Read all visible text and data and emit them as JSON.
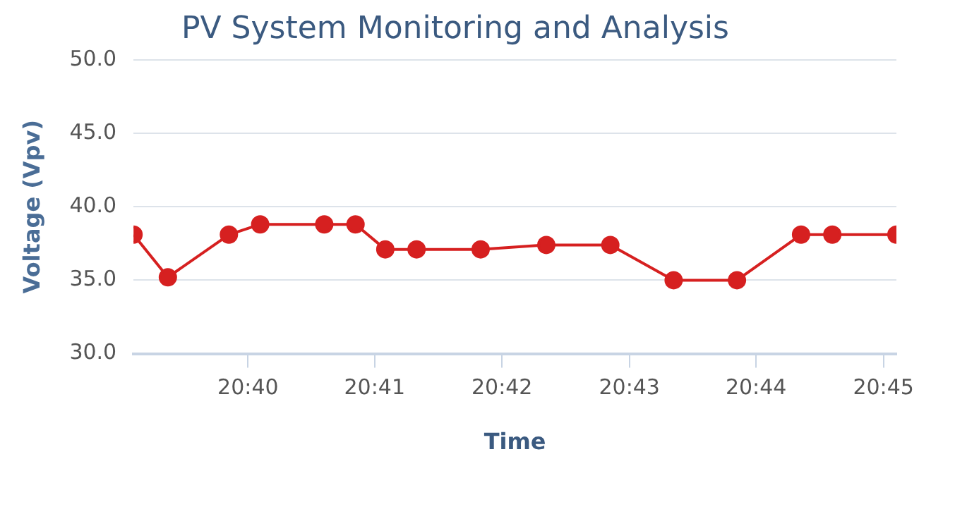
{
  "chart_data": {
    "type": "line",
    "title": "PV System Monitoring and Analysis",
    "xlabel": "Time",
    "ylabel": "Voltage (Vpv)",
    "x": [
      20.6517,
      20.6562,
      20.6642,
      20.6683,
      20.6767,
      20.6808,
      20.6847,
      20.6888,
      20.6972,
      20.7058,
      20.7142,
      20.7225,
      20.7308,
      20.7392,
      20.7433,
      20.7517
    ],
    "series": [
      {
        "color": "#d62020",
        "values": [
          38.1,
          35.2,
          38.1,
          38.8,
          38.8,
          38.8,
          37.1,
          37.1,
          37.1,
          37.4,
          37.4,
          35.0,
          35.0,
          38.1,
          38.1,
          38.1
        ]
      }
    ],
    "xlim": [
      20.6517,
      20.7517
    ],
    "xticks": [
      {
        "value": 20.6667,
        "label": "20:40"
      },
      {
        "value": 20.6833,
        "label": "20:41"
      },
      {
        "value": 20.7,
        "label": "20:42"
      },
      {
        "value": 20.7167,
        "label": "20:43"
      },
      {
        "value": 20.7333,
        "label": "20:44"
      },
      {
        "value": 20.75,
        "label": "20:45"
      }
    ],
    "ylim": [
      30,
      50
    ],
    "yticks": [
      {
        "value": 30,
        "label": "30.0"
      },
      {
        "value": 35,
        "label": "35.0"
      },
      {
        "value": 40,
        "label": "40.0"
      },
      {
        "value": 45,
        "label": "45.0"
      },
      {
        "value": 50,
        "label": "50.0"
      }
    ],
    "grid": "y",
    "legend": false,
    "marker": "circle",
    "line_style": "solid"
  }
}
